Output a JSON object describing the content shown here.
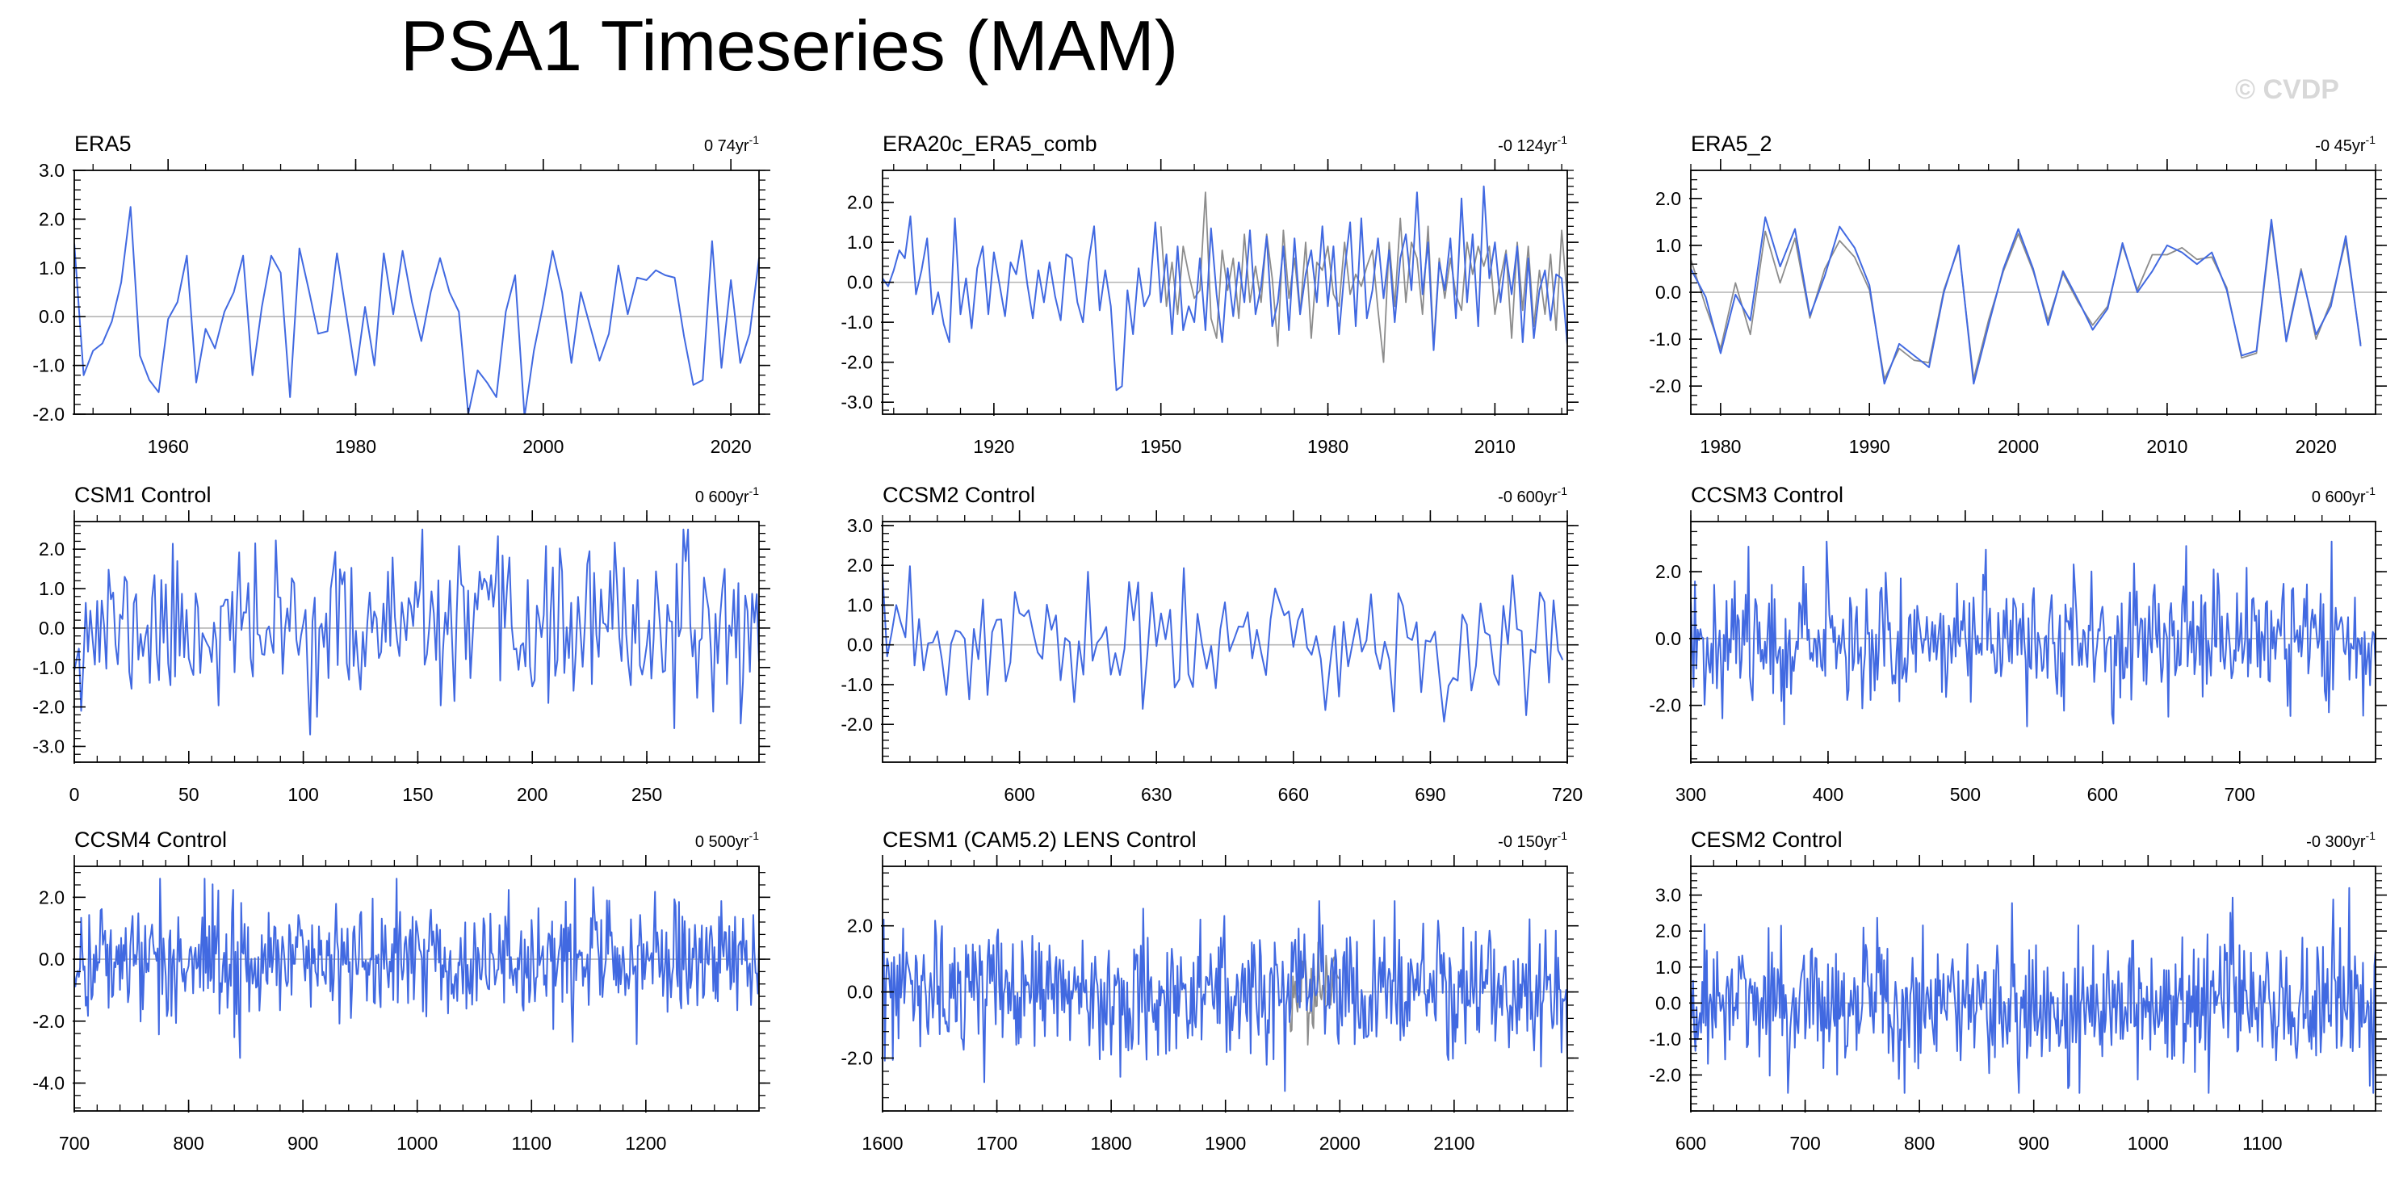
{
  "figure": {
    "title": "PSA1 Timeseries (MAM)",
    "watermark": "© CVDP"
  },
  "colors": {
    "primary": "#4169e1",
    "secondary": "#8c8c8c",
    "zero_line": "#b4b4b4"
  },
  "chart_data": [
    {
      "type": "line",
      "title": "ERA5",
      "trend_label": "0 74yr",
      "trend_exponent": "-1",
      "xlim": [
        1950,
        2023
      ],
      "xticks": [
        1960,
        1980,
        2000,
        2020
      ],
      "ylim": [
        -2.0,
        3.0
      ],
      "yticks": [
        3.0,
        2.0,
        1.0,
        0.0,
        -1.0,
        -2.0
      ],
      "yticklabels": [
        "3.0",
        "2.0",
        "1.0",
        "0.0",
        "-1.0",
        "-2.0"
      ],
      "series": [
        {
          "x_start": 1950,
          "x_step": 1,
          "values": [
            1.5,
            -1.2,
            -0.7,
            -0.55,
            -0.1,
            0.7,
            2.25,
            -0.8,
            -1.3,
            -1.55,
            -0.05,
            0.3,
            1.25,
            -1.35,
            -0.25,
            -0.65,
            0.1,
            0.5,
            1.25,
            -1.2,
            0.2,
            1.25,
            0.9,
            -1.65,
            1.4,
            0.55,
            -0.35,
            -0.3,
            1.3,
            0.05,
            -1.2,
            0.2,
            -1.0,
            1.3,
            0.05,
            1.35,
            0.3,
            -0.5,
            0.5,
            1.2,
            0.5,
            0.1,
            -2.0,
            -1.1,
            -1.35,
            -1.65,
            0.1,
            0.85,
            -2.05,
            -0.7,
            0.25,
            1.35,
            0.5,
            -0.95,
            0.5,
            -0.2,
            -0.9,
            -0.35,
            1.05,
            0.05,
            0.8,
            0.75,
            0.95,
            0.85,
            0.8,
            -0.4,
            -1.4,
            -1.3,
            1.55,
            -1.05,
            0.75,
            -0.95,
            -0.35,
            1.2,
            -1.0
          ]
        }
      ]
    },
    {
      "type": "line",
      "title": "ERA20c_ERA5_comb",
      "trend_label": "-0 124yr",
      "trend_exponent": "-1",
      "xlim": [
        1900,
        2023
      ],
      "xticks": [
        1920,
        1950,
        1980,
        2010
      ],
      "ylim": [
        -3.3,
        2.8
      ],
      "yticks": [
        2.0,
        1.0,
        0.0,
        -1.0,
        -2.0,
        -3.0
      ],
      "yticklabels": [
        "2.0",
        "1.0",
        "0.0",
        "-1.0",
        "-2.0",
        "-3.0"
      ],
      "series": [
        {
          "x_start": 1900,
          "x_step": 1,
          "values": [
            0.1,
            -0.1,
            0.3,
            0.8,
            0.6,
            1.65,
            -0.3,
            0.3,
            1.1,
            -0.8,
            -0.25,
            -1.05,
            -1.5,
            1.6,
            -0.8,
            0.1,
            -1.15,
            0.35,
            0.9,
            -0.8,
            0.75,
            -0.05,
            -0.85,
            0.5,
            0.2,
            1.05,
            -0.05,
            -0.9,
            0.3,
            -0.5,
            0.5,
            -0.35,
            -0.95,
            0.7,
            0.6,
            -0.5,
            -1.0,
            0.5,
            1.4,
            -0.7,
            0.3,
            -0.6,
            -2.7,
            -2.6,
            -0.2,
            -1.3,
            0.35,
            -0.6,
            -0.3,
            1.5,
            -0.5,
            0.7,
            -1.3,
            0.9,
            -1.2,
            -0.6,
            -1.0,
            0.6,
            -1.2,
            1.35,
            -0.3,
            -1.5,
            0.35,
            -0.85,
            0.5,
            -0.5,
            1.3,
            -0.8,
            -0.1,
            1.15,
            -1.1,
            -0.5,
            0.9,
            -1.2,
            1.1,
            -0.8,
            0.2,
            0.8,
            -0.5,
            1.4,
            -0.6,
            0.9,
            -1.3,
            0.3,
            1.5,
            -1.1,
            1.6,
            -0.9,
            -0.2,
            1.1,
            -0.4,
            0.8,
            -1.0,
            0.6,
            1.2,
            -0.2,
            2.25,
            -0.3,
            1.0,
            -1.7,
            0.5,
            -0.2,
            1.1,
            -0.9,
            2.1,
            -0.5,
            1.2,
            -1.1,
            2.4,
            0.1,
            1.0,
            -0.5,
            0.7,
            -0.3,
            0.9,
            -1.5,
            0.6,
            -1.4,
            -0.2,
            0.3,
            -0.95,
            0.2,
            0.1,
            -1.55
          ]
        },
        {
          "x_start": 1950,
          "x_step": 1,
          "values": [
            1.4,
            -0.6,
            0.5,
            -0.8,
            0.9,
            0.2,
            -0.4,
            -0.2,
            2.25,
            -0.9,
            -1.4,
            0.8,
            -0.2,
            0.6,
            -0.9,
            1.2,
            -0.5,
            0.4,
            -0.5,
            1.2,
            0.1,
            -1.6,
            1.3,
            -0.4,
            0.6,
            -0.8,
            1.0,
            -1.4,
            0.5,
            0.3,
            0.9,
            -0.3,
            -0.6,
            1.0,
            -0.3,
            0.2,
            -0.1,
            0.4,
            0.8,
            -0.7,
            -2.0,
            1.0,
            -0.6,
            1.6,
            -0.5,
            1.0,
            0.6,
            -0.8,
            1.4,
            -1.6,
            0.6,
            -0.4,
            0.6,
            -0.3,
            -0.7,
            1.0,
            0.2,
            0.9,
            0.4,
            0.9,
            -0.8,
            0.1,
            0.8,
            -1.4,
            1.0,
            -0.7,
            0.9,
            -1.1,
            0.3,
            -0.8,
            0.7,
            -1.2,
            1.3,
            -0.4
          ]
        }
      ]
    },
    {
      "type": "line",
      "title": "ERA5_2",
      "trend_label": "-0 45yr",
      "trend_exponent": "-1",
      "xlim": [
        1978,
        2024
      ],
      "xticks": [
        1980,
        1990,
        2000,
        2010,
        2020
      ],
      "ylim": [
        -2.6,
        2.6
      ],
      "yticks": [
        2.0,
        1.0,
        0.0,
        -1.0,
        -2.0
      ],
      "yticklabels": [
        "2.0",
        "1.0",
        "0.0",
        "-1.0",
        "-2.0"
      ],
      "series": [
        {
          "x_start": 1978,
          "x_step": 1,
          "values": [
            0.5,
            -0.1,
            -1.3,
            -0.05,
            -0.6,
            1.6,
            0.55,
            1.35,
            -0.5,
            0.35,
            1.4,
            0.95,
            0.15,
            -1.95,
            -1.1,
            -1.35,
            -1.6,
            0.0,
            1.0,
            -1.95,
            -0.7,
            0.5,
            1.35,
            0.5,
            -0.7,
            0.45,
            -0.15,
            -0.8,
            -0.35,
            1.05,
            0.0,
            0.45,
            1.0,
            0.85,
            0.6,
            0.85,
            0.05,
            -1.35,
            -1.25,
            1.55,
            -1.05,
            0.45,
            -0.9,
            -0.3,
            1.2,
            -1.15
          ]
        },
        {
          "x_start": 1978,
          "x_step": 1,
          "values": [
            0.7,
            -0.3,
            -1.2,
            0.2,
            -0.9,
            1.3,
            0.2,
            1.15,
            -0.55,
            0.5,
            1.1,
            0.75,
            0.05,
            -1.85,
            -1.2,
            -1.45,
            -1.5,
            0.05,
            0.95,
            -1.85,
            -0.6,
            0.45,
            1.25,
            0.45,
            -0.6,
            0.4,
            -0.2,
            -0.7,
            -0.3,
            1.0,
            0.05,
            0.8,
            0.8,
            0.95,
            0.7,
            0.75,
            0.1,
            -1.4,
            -1.3,
            1.45,
            -1.0,
            0.5,
            -1.0,
            -0.2,
            1.1,
            -1.1
          ]
        }
      ]
    },
    {
      "type": "line",
      "title": "CSM1 Control",
      "trend_label": "0 600yr",
      "trend_exponent": "-1",
      "xlim": [
        0,
        299
      ],
      "xticks": [
        0,
        50,
        100,
        150,
        200,
        250
      ],
      "ylim": [
        -3.4,
        2.7
      ],
      "yticks": [
        2.0,
        1.0,
        0.0,
        -1.0,
        -2.0,
        -3.0
      ],
      "yticklabels": [
        "2.0",
        "1.0",
        "0.0",
        "-1.0",
        "-2.0",
        "-3.0"
      ],
      "series": [
        {
          "x_start": 0,
          "x_step": 1,
          "noise": {
            "n": 300,
            "seed": 11,
            "std": 0.95,
            "ymin": -3.0,
            "ymax": 2.5
          }
        }
      ]
    },
    {
      "type": "line",
      "title": "CCSM2 Control",
      "trend_label": "-0 600yr",
      "trend_exponent": "-1",
      "xlim": [
        570,
        720
      ],
      "xticks": [
        600,
        630,
        660,
        690,
        720
      ],
      "ylim": [
        -2.95,
        3.1
      ],
      "yticks": [
        3.0,
        2.0,
        1.0,
        0.0,
        -1.0,
        -2.0
      ],
      "yticklabels": [
        "3.0",
        "2.0",
        "1.0",
        "0.0",
        "-1.0",
        "-2.0"
      ],
      "series": [
        {
          "x_start": 570,
          "x_step": 1,
          "noise": {
            "n": 150,
            "seed": 23,
            "std": 0.9,
            "ymin": -2.5,
            "ymax": 2.65
          }
        }
      ]
    },
    {
      "type": "line",
      "title": "CCSM3 Control",
      "trend_label": "0 600yr",
      "trend_exponent": "-1",
      "xlim": [
        300,
        799
      ],
      "xticks": [
        300,
        400,
        500,
        600,
        700
      ],
      "ylim": [
        -3.7,
        3.5
      ],
      "yticks": [
        2.0,
        0.0,
        -2.0
      ],
      "yticklabels": [
        "2.0",
        "0.0",
        "-2.0"
      ],
      "series": [
        {
          "x_start": 300,
          "x_step": 1,
          "noise": {
            "n": 500,
            "seed": 37,
            "std": 0.95,
            "ymin": -3.3,
            "ymax": 2.9
          }
        }
      ]
    },
    {
      "type": "line",
      "title": "CCSM4 Control",
      "trend_label": "0 500yr",
      "trend_exponent": "-1",
      "xlim": [
        700,
        1299
      ],
      "xticks": [
        700,
        800,
        900,
        1000,
        1100,
        1200
      ],
      "ylim": [
        -4.9,
        3.0
      ],
      "yticks": [
        2.0,
        0.0,
        -2.0,
        -4.0
      ],
      "yticklabels": [
        "2.0",
        "0.0",
        "-2.0",
        "-4.0"
      ],
      "series": [
        {
          "x_start": 700,
          "x_step": 1,
          "noise": {
            "n": 600,
            "seed": 41,
            "std": 0.95,
            "ymin": -4.4,
            "ymax": 2.6
          }
        }
      ]
    },
    {
      "type": "line",
      "title": "CESM1 (CAM5.2) LENS Control",
      "trend_label": "-0 150yr",
      "trend_exponent": "-1",
      "xlim": [
        1600,
        2199
      ],
      "xticks": [
        1600,
        1700,
        1800,
        1900,
        2000,
        2100
      ],
      "ylim": [
        -3.6,
        3.8
      ],
      "yticks": [
        2.0,
        0.0,
        -2.0
      ],
      "yticklabels": [
        "2.0",
        "0.0",
        "-2.0"
      ],
      "series": [
        {
          "x_start": 1600,
          "x_step": 1,
          "noise": {
            "n": 600,
            "seed": 53,
            "std": 0.95,
            "ymin": -3.0,
            "ymax": 2.75
          }
        },
        {
          "x_start": 1955,
          "x_step": 1,
          "noise": {
            "n": 45,
            "seed": 97,
            "std": 0.8,
            "ymin": -2.0,
            "ymax": 1.5
          }
        }
      ]
    },
    {
      "type": "line",
      "title": "CESM2 Control",
      "trend_label": "-0 300yr",
      "trend_exponent": "-1",
      "xlim": [
        600,
        1199
      ],
      "xticks": [
        600,
        700,
        800,
        900,
        1000,
        1100
      ],
      "ylim": [
        -3.0,
        3.8
      ],
      "yticks": [
        3.0,
        2.0,
        1.0,
        0.0,
        -1.0,
        -2.0
      ],
      "yticklabels": [
        "3.0",
        "2.0",
        "1.0",
        "0.0",
        "-1.0",
        "-2.0"
      ],
      "series": [
        {
          "x_start": 600,
          "x_step": 1,
          "noise": {
            "n": 600,
            "seed": 71,
            "std": 0.95,
            "ymin": -2.5,
            "ymax": 3.2
          }
        }
      ]
    }
  ]
}
